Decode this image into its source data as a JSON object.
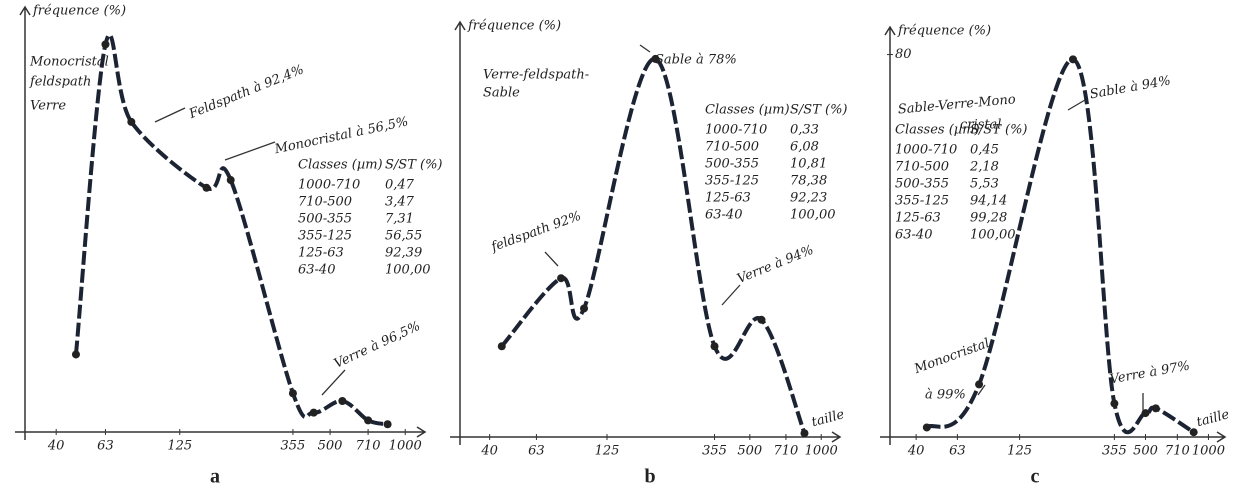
{
  "chart_data": [
    {
      "type": "line",
      "panel_label": "a",
      "y_label": "fréquence (%)",
      "color": "#1c2333",
      "xscale": "log",
      "xlim": [
        30,
        1200
      ],
      "ylim": [
        0,
        105
      ],
      "xticks": [
        40,
        63,
        125,
        355,
        500,
        710,
        1000
      ],
      "x": [
        48,
        63,
        80,
        160,
        200,
        355,
        430,
        560,
        710,
        850
      ],
      "values": [
        20,
        100,
        80,
        63,
        65,
        10,
        5,
        8,
        3,
        2
      ],
      "annotations": [
        "Monocristal",
        "feldspath",
        "Verre",
        "Feldspath à 92,4%",
        "Monocristal à 56,5%",
        "Verre à 96,5%"
      ],
      "table": {
        "header": [
          "Classes (µm)",
          "S/ST (%)"
        ],
        "rows": [
          [
            "1000-710",
            "0,47"
          ],
          [
            "710-500",
            "3,47"
          ],
          [
            "500-355",
            "7,31"
          ],
          [
            "355-125",
            "56,55"
          ],
          [
            "125-63",
            "92,39"
          ],
          [
            "63-40",
            "100,00"
          ]
        ]
      }
    },
    {
      "type": "line",
      "panel_label": "b",
      "y_label": "fréquence (%)",
      "x_label": "taille",
      "color": "#1c2333",
      "xscale": "log",
      "xlim": [
        30,
        1200
      ],
      "ylim": [
        0,
        105
      ],
      "xticks": [
        40,
        63,
        125,
        355,
        500,
        710,
        1000
      ],
      "x": [
        45,
        80,
        100,
        200,
        355,
        560,
        850
      ],
      "values": [
        24,
        42,
        34,
        100,
        24,
        31,
        1
      ],
      "annotations": [
        "Verre-feldspath-",
        "Sable",
        "Sable à 78%",
        "feldspath 92%",
        "Verre à 94%"
      ],
      "table": {
        "header": [
          "Classes (µm)",
          "S/ST (%)"
        ],
        "rows": [
          [
            "1000-710",
            "0,33"
          ],
          [
            "710-500",
            "6,08"
          ],
          [
            "500-355",
            "10,81"
          ],
          [
            "355-125",
            "78,38"
          ],
          [
            "125-63",
            "92,23"
          ],
          [
            "63-40",
            "100,00"
          ]
        ]
      }
    },
    {
      "type": "line",
      "panel_label": "c",
      "y_label": "fréquence (%)",
      "x_label": "taille",
      "color": "#1c2333",
      "xscale": "log",
      "xlim": [
        30,
        1200
      ],
      "ylim": [
        0,
        82
      ],
      "yticks": [
        80
      ],
      "xticks": [
        40,
        63,
        125,
        355,
        500,
        710,
        1000
      ],
      "x": [
        45,
        80,
        225,
        355,
        500,
        560,
        850
      ],
      "values": [
        2,
        11,
        79,
        7,
        5,
        6,
        1
      ],
      "annotations": [
        "Sable-Verre-Mono",
        "cristal",
        "Sable à 94%",
        "Monocristal",
        "à 99%",
        "Verre à 97%"
      ],
      "table": {
        "header": [
          "Classes (µm)",
          "S/ST (%)"
        ],
        "rows": [
          [
            "1000-710",
            "0,45"
          ],
          [
            "710-500",
            "2,18"
          ],
          [
            "500-355",
            "5,53"
          ],
          [
            "355-125",
            "94,14"
          ],
          [
            "125-63",
            "99,28"
          ],
          [
            "63-40",
            "100,00"
          ]
        ]
      }
    }
  ]
}
